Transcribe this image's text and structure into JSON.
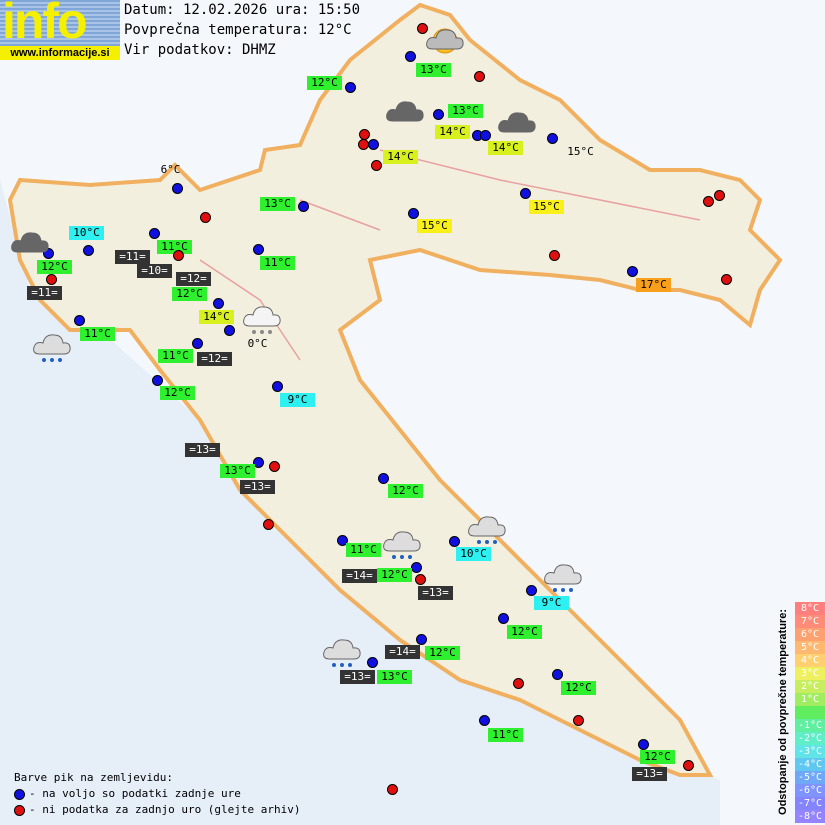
{
  "logo": {
    "text": "info",
    "url": "www.informacije.si"
  },
  "header": {
    "date_line": "Datum: 12.02.2026 ura: 15:50",
    "avg_line": "Povprečna temperatura: 12°C",
    "source_line": "Vir podatkov: DHMZ"
  },
  "stations": [
    {
      "dot": "red"
    },
    {
      "dot": "blue",
      "label": "13°C",
      "color": "g"
    },
    {
      "dot": "red"
    },
    {
      "dot": "blue",
      "label": "12°C",
      "color": "g"
    },
    {
      "dot": "blue",
      "label": "13°C",
      "color": "g"
    },
    {
      "dot": "red"
    },
    {
      "dot": "red"
    },
    {
      "dot": "blue"
    },
    {
      "dot": "blue",
      "label": "14°C",
      "color": "l"
    },
    {
      "dot": "blue",
      "label": "14°C",
      "color": "l"
    },
    {
      "dot": "blue",
      "label": "15°C",
      "color": "p"
    },
    {
      "dot": "red",
      "label": "14°C",
      "color": "l"
    },
    {
      "dot": "blue",
      "label": "6°C",
      "color": "p"
    },
    {
      "dot": "red"
    },
    {
      "dot": "blue",
      "label": "13°C",
      "color": "g"
    },
    {
      "dot": "blue",
      "label": "15°C",
      "color": "y"
    },
    {
      "dot": "blue",
      "label": "15°C",
      "color": "y"
    },
    {
      "dot": "red"
    },
    {
      "dot": "red"
    },
    {
      "dot": "blue",
      "label": "11°C",
      "color": "g"
    },
    {
      "dot": "blue",
      "label": "10°C",
      "color": "c"
    },
    {
      "dot": "blue",
      "label": "12°C",
      "color": "g"
    },
    {
      "dot": "red",
      "label": "=11=",
      "color": "d"
    },
    {
      "dot": "blue",
      "label": "=10=",
      "color": "d"
    },
    {
      "label": "12°C",
      "color": "g"
    },
    {
      "label": "=12=",
      "color": "d"
    },
    {
      "dot": "blue",
      "label": "11°C",
      "color": "g"
    },
    {
      "dot": "red",
      "label": "=11=",
      "color": "d"
    },
    {
      "dot": "red"
    },
    {
      "dot": "blue",
      "label": "17°C",
      "color": "o"
    },
    {
      "dot": "red"
    },
    {
      "dot": "blue",
      "label": "14°C",
      "color": "l"
    },
    {
      "dot": "blue",
      "label": "0°C",
      "color": "p"
    },
    {
      "dot": "blue",
      "label": "11°C",
      "color": "g"
    },
    {
      "dot": "blue",
      "label": "11°C",
      "color": "g"
    },
    {
      "label": "=12=",
      "color": "d"
    },
    {
      "dot": "blue",
      "label": "12°C",
      "color": "g"
    },
    {
      "dot": "blue",
      "label": "9°C",
      "color": "c"
    },
    {
      "label": "=13=",
      "color": "d"
    },
    {
      "dot": "blue",
      "label": "13°C",
      "color": "g"
    },
    {
      "dot": "red",
      "label": "=13=",
      "color": "d"
    },
    {
      "dot": "blue",
      "label": "12°C",
      "color": "g"
    },
    {
      "dot": "red"
    },
    {
      "dot": "blue",
      "label": "11°C",
      "color": "g"
    },
    {
      "dot": "blue",
      "label": "10°C",
      "color": "c"
    },
    {
      "label": "=14=",
      "color": "d"
    },
    {
      "dot": "blue",
      "label": "12°C",
      "color": "g"
    },
    {
      "dot": "red",
      "label": "=13=",
      "color": "d"
    },
    {
      "dot": "blue",
      "label": "9°C",
      "color": "c"
    },
    {
      "dot": "blue",
      "label": "12°C",
      "color": "g"
    },
    {
      "dot": "blue",
      "label": "12°C",
      "color": "g"
    },
    {
      "label": "=14=",
      "color": "d"
    },
    {
      "dot": "blue",
      "label": "=13=",
      "color": "d"
    },
    {
      "label": "13°C",
      "color": "g"
    },
    {
      "dot": "blue",
      "label": "12°C",
      "color": "g"
    },
    {
      "dot": "red"
    },
    {
      "dot": "red"
    },
    {
      "dot": "blue",
      "label": "11°C",
      "color": "g"
    },
    {
      "dot": "blue",
      "label": "12°C",
      "color": "g"
    },
    {
      "dot": "red"
    },
    {
      "label": "=13=",
      "color": "d"
    },
    {
      "dot": "red"
    }
  ],
  "weather_icons": [
    "sun-cloud",
    "cloud",
    "cloud",
    "cloud",
    "cloud-rain",
    "cloud-fog",
    "cloud-rain",
    "cloud-rain",
    "cloud-rain",
    "cloud-rain"
  ],
  "legend": {
    "title": "Barve pik na zemljevidu:",
    "blue": "- na voljo so podatki zadnje ure",
    "red": "- ni podatka za zadnjo uro (glejte arhiv)",
    "blue_color": "#1010e0",
    "red_color": "#e01010"
  },
  "scale": {
    "title": "Odstopanje od povprečne temperature:",
    "rows": [
      {
        "label": "8°C",
        "color": "#ff7f7f"
      },
      {
        "label": "7°C",
        "color": "#ff8c78"
      },
      {
        "label": "6°C",
        "color": "#ffa070"
      },
      {
        "label": "5°C",
        "color": "#ffb870"
      },
      {
        "label": "4°C",
        "color": "#ffd070"
      },
      {
        "label": "3°C",
        "color": "#eef060"
      },
      {
        "label": "2°C",
        "color": "#c8ee60"
      },
      {
        "label": "1°C",
        "color": "#a0ee60"
      },
      {
        "label": "",
        "color": "#60ee60"
      },
      {
        "label": "-1°C",
        "color": "#60eea0"
      },
      {
        "label": "-2°C",
        "color": "#60eec8"
      },
      {
        "label": "-3°C",
        "color": "#60e4e8"
      },
      {
        "label": "-4°C",
        "color": "#60c8f0"
      },
      {
        "label": "-5°C",
        "color": "#70a8f8"
      },
      {
        "label": "-6°C",
        "color": "#8094ff"
      },
      {
        "label": "-7°C",
        "color": "#8484ff"
      },
      {
        "label": "-8°C",
        "color": "#9484ff"
      }
    ]
  }
}
